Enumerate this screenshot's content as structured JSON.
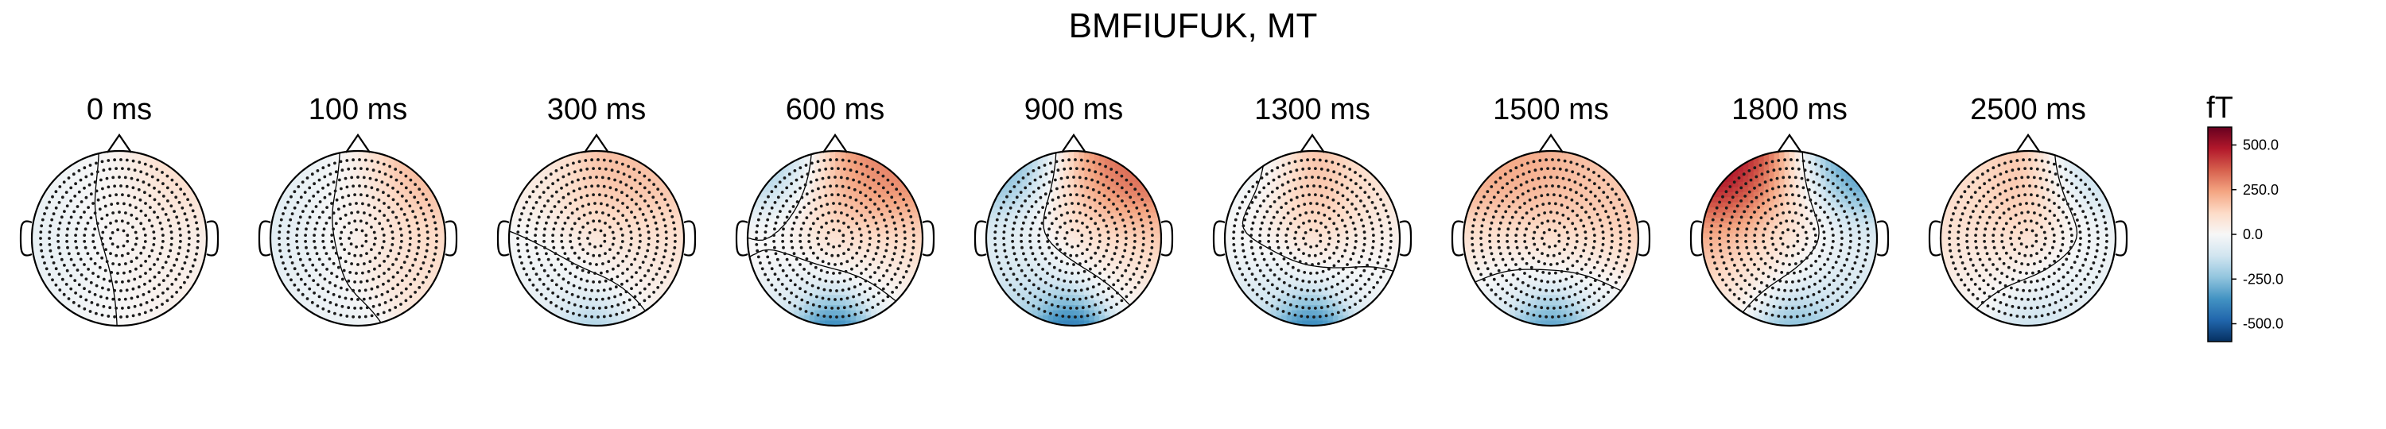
{
  "chart_data": {
    "type": "heatmap",
    "title": "BMFIUFUK, MT",
    "panels": [
      {
        "label": "0 ms",
        "map": {
          "fl": -30,
          "fr": 120,
          "fc": 20,
          "cl": -60,
          "cr": 40,
          "cc": 20,
          "pl": -30,
          "pr": 30,
          "occ": 0
        }
      },
      {
        "label": "100 ms",
        "map": {
          "fl": -60,
          "fr": 220,
          "fc": 30,
          "cl": -80,
          "cr": 120,
          "cc": 40,
          "pl": -40,
          "pr": 80,
          "occ": -60
        }
      },
      {
        "label": "300 ms",
        "map": {
          "fl": 40,
          "fr": 180,
          "fc": 210,
          "cl": -10,
          "cr": 100,
          "cc": 20,
          "pl": -60,
          "pr": 20,
          "occ": -250
        }
      },
      {
        "label": "600 ms",
        "map": {
          "fl": -250,
          "fr": 320,
          "fc": 260,
          "cl": 30,
          "cr": 130,
          "cc": 40,
          "pl": -100,
          "pr": -20,
          "occ": -520
        }
      },
      {
        "label": "900 ms",
        "map": {
          "fl": -320,
          "fr": 380,
          "fc": 220,
          "cl": -60,
          "cr": 160,
          "cc": 20,
          "pl": -180,
          "pr": 0,
          "occ": -560
        }
      },
      {
        "label": "1300 ms",
        "map": {
          "fl": -60,
          "fr": 80,
          "fc": 240,
          "cl": 0,
          "cr": 30,
          "cc": 60,
          "pl": -130,
          "pr": -60,
          "occ": -520
        }
      },
      {
        "label": "1500 ms",
        "map": {
          "fl": 240,
          "fr": 160,
          "fc": 230,
          "cl": 100,
          "cr": 160,
          "cc": 60,
          "pl": -90,
          "pr": -80,
          "occ": -430
        }
      },
      {
        "label": "1800 ms",
        "map": {
          "fl": 560,
          "fr": -420,
          "fc": 180,
          "cl": 220,
          "cr": -60,
          "cc": 60,
          "pl": 30,
          "pr": -140,
          "occ": -330
        }
      },
      {
        "label": "2500 ms",
        "map": {
          "fl": 100,
          "fr": -180,
          "fc": 230,
          "cl": 90,
          "cr": -20,
          "cc": 60,
          "pl": 0,
          "pr": -80,
          "occ": -170
        }
      }
    ],
    "colorbar": {
      "unit": "fT",
      "range": [
        -600,
        600
      ],
      "ticks": [
        {
          "value": 500,
          "label": "500.0"
        },
        {
          "value": 250,
          "label": "250.0"
        },
        {
          "value": 0,
          "label": "0.0"
        },
        {
          "value": -250,
          "label": "-250.0"
        },
        {
          "value": -500,
          "label": "-500.0"
        }
      ],
      "colormap": "RdBu_r"
    },
    "colors": {
      "max": "#67001f",
      "mid": "#f7f7f7",
      "min": "#053061"
    },
    "sensor_markers": "dots",
    "contour_line": "zero-level"
  }
}
